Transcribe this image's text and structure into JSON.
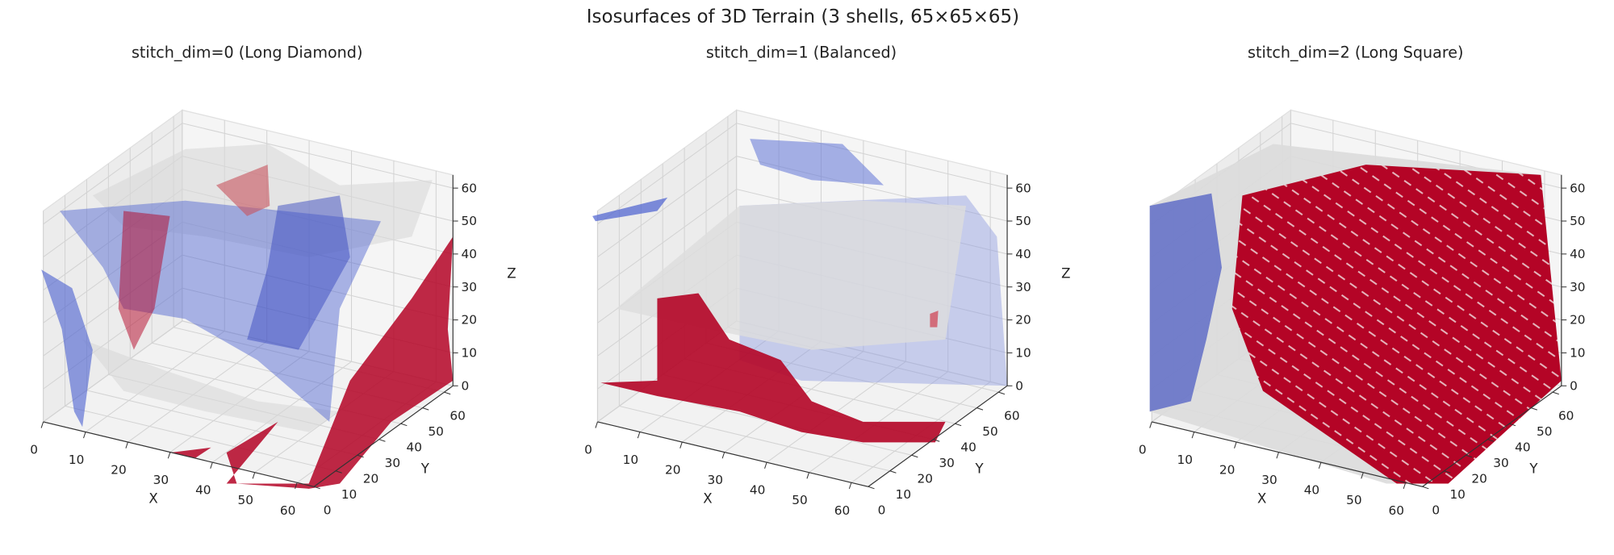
{
  "title": "Isosurfaces of 3D Terrain (3 shells, 65×65×65)",
  "chart_data": [
    {
      "type": "isosurface3d",
      "title": "stitch_dim=0 (Long Diamond)",
      "xlabel": "X",
      "ylabel": "Y",
      "zlabel": "Z",
      "xlim": [
        0,
        64
      ],
      "ylim": [
        0,
        64
      ],
      "zlim": [
        0,
        64
      ],
      "xticks": [
        0,
        10,
        20,
        30,
        40,
        50,
        60
      ],
      "yticks": [
        0,
        10,
        20,
        30,
        40,
        50,
        60
      ],
      "zticks": [
        0,
        10,
        20,
        30,
        40,
        50,
        60
      ],
      "grid": true
    },
    {
      "type": "isosurface3d",
      "title": "stitch_dim=1 (Balanced)",
      "xlabel": "X",
      "ylabel": "Y",
      "zlabel": "Z",
      "xlim": [
        0,
        64
      ],
      "ylim": [
        0,
        64
      ],
      "zlim": [
        0,
        64
      ],
      "xticks": [
        0,
        10,
        20,
        30,
        40,
        50,
        60
      ],
      "yticks": [
        0,
        10,
        20,
        30,
        40,
        50,
        60
      ],
      "zticks": [
        0,
        10,
        20,
        30,
        40,
        50,
        60
      ],
      "grid": true
    },
    {
      "type": "isosurface3d",
      "title": "stitch_dim=2 (Long Square)",
      "xlabel": "X",
      "ylabel": "Y",
      "zlabel": "Z",
      "xlim": [
        0,
        64
      ],
      "ylim": [
        0,
        64
      ],
      "zlim": [
        0,
        64
      ],
      "xticks": [
        0,
        10,
        20,
        30,
        40,
        50,
        60
      ],
      "yticks": [
        0,
        10,
        20,
        30,
        40,
        50,
        60
      ],
      "zticks": [
        0,
        10,
        20,
        30,
        40,
        50,
        60
      ],
      "grid": true
    }
  ]
}
